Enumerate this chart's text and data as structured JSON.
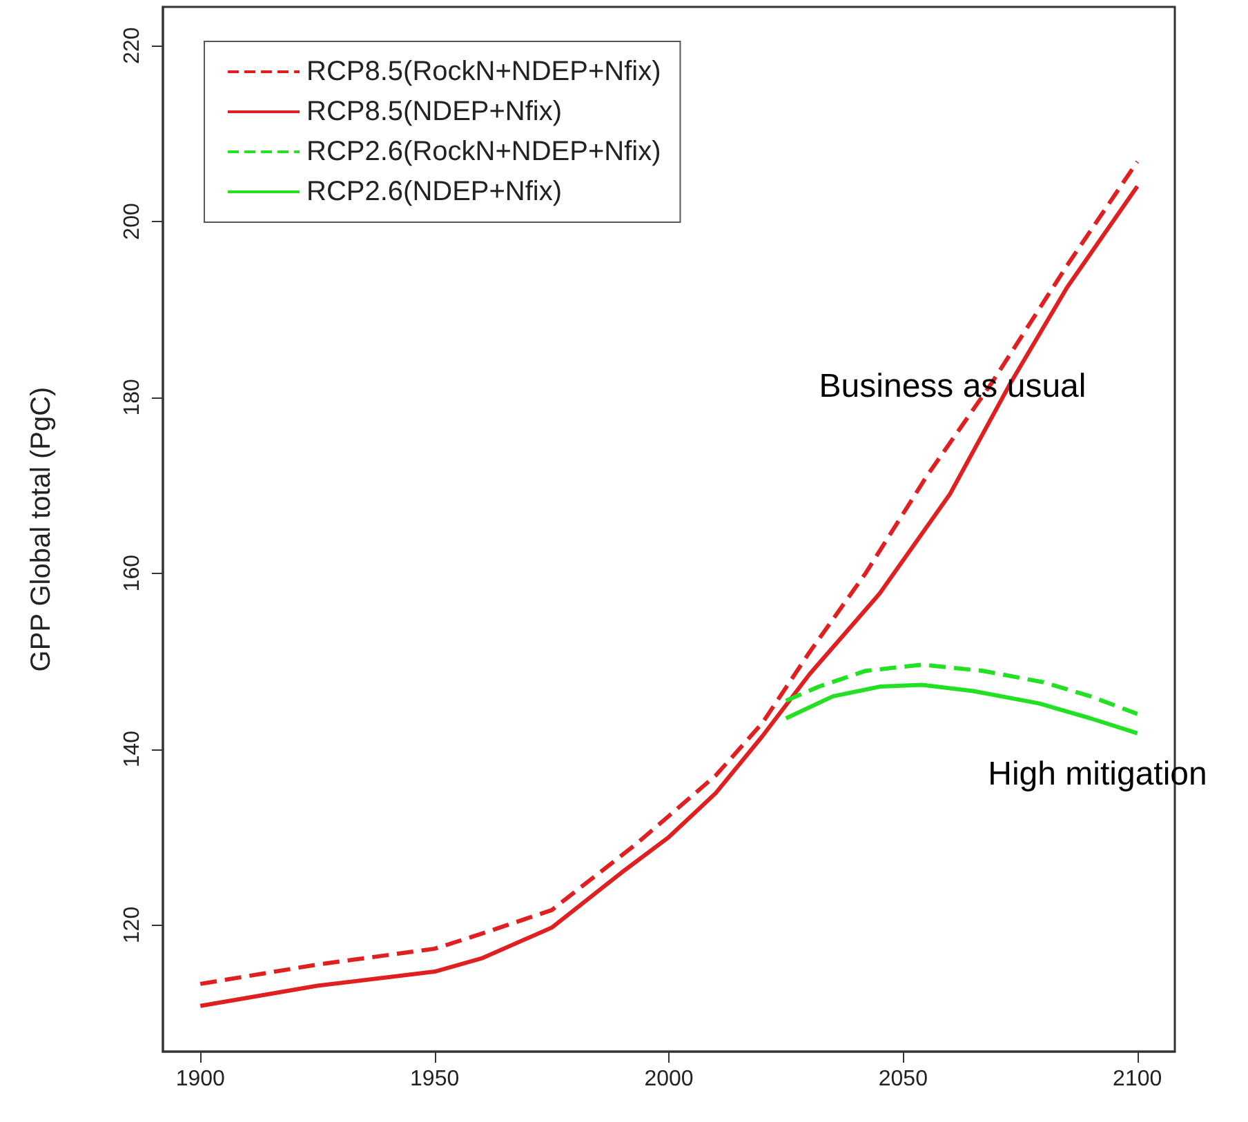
{
  "chart_data": {
    "type": "line",
    "ylabel": "GPP Global total (PgC)",
    "xlim": [
      1892,
      2108
    ],
    "xticks": [
      1900,
      1950,
      2000,
      2050,
      2100
    ],
    "ylim": [
      105.6,
      224.4
    ],
    "yticks": [
      120,
      140,
      160,
      180,
      200,
      220
    ],
    "grid": false,
    "legend": "top left",
    "marker": "none",
    "series": [
      {
        "name": "RCP8.5(RockN+NDEP+Nfix)",
        "color": "#e02020",
        "line_style": "dashed",
        "x": [
          1900,
          1925,
          1950,
          1960,
          1975,
          1993,
          2000,
          2010,
          2020,
          2030,
          2042,
          2055,
          2069,
          2085,
          2100
        ],
        "values": [
          113.3,
          115.5,
          117.3,
          119,
          121.7,
          129.2,
          132.4,
          137,
          143,
          151,
          160,
          171,
          181.7,
          195,
          206.8
        ]
      },
      {
        "name": "RCP8.5(NDEP+Nfix)",
        "color": "#e02020",
        "line_style": "solid",
        "x": [
          1900,
          1925,
          1950,
          1960,
          1975,
          1990,
          2000,
          2010,
          2020,
          2030,
          2045,
          2060,
          2073,
          2085,
          2100
        ],
        "values": [
          110.8,
          113.1,
          114.7,
          116.2,
          119.7,
          126,
          130,
          135,
          141.5,
          148.5,
          157.7,
          169,
          181.7,
          192.5,
          204
        ]
      },
      {
        "name": "RCP2.6(RockN+NDEP+Nfix)",
        "color": "#22e022",
        "line_style": "dashed",
        "x": [
          2025,
          2032,
          2042,
          2054,
          2067,
          2080,
          2090,
          2100
        ],
        "values": [
          145.5,
          147.1,
          148.9,
          149.6,
          148.9,
          147.6,
          146,
          144
        ]
      },
      {
        "name": "RCP2.6(NDEP+Nfix)",
        "color": "#22e022",
        "line_style": "solid",
        "x": [
          2025,
          2035,
          2045,
          2054,
          2065,
          2079,
          2090,
          2100
        ],
        "values": [
          143.5,
          146,
          147.1,
          147.3,
          146.6,
          145.2,
          143.5,
          141.8
        ]
      }
    ],
    "annotations": [
      "Business as usual",
      "High mitigation"
    ]
  }
}
